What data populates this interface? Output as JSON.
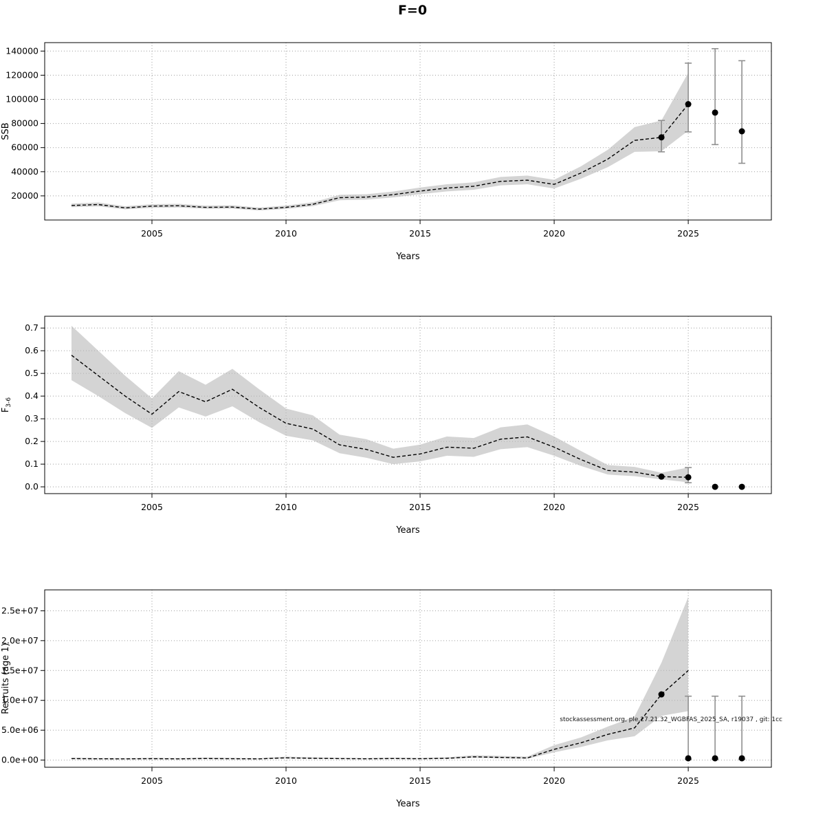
{
  "title": "F=0",
  "watermark": "stockassessment.org, ple.27.21.32_WGBFAS_2025_SA, r19037 , git: 1cc",
  "chart_data": [
    {
      "name": "SSB",
      "type": "line",
      "xlabel": "Years",
      "ylabel": "SSB",
      "ylabel_sub": null,
      "xlim": [
        2001,
        2028.1
      ],
      "ylim": [
        0,
        147000
      ],
      "xticks": [
        2005,
        2010,
        2015,
        2020,
        2025
      ],
      "ytick_values": [
        20000,
        40000,
        60000,
        80000,
        100000,
        120000,
        140000
      ],
      "ytick_labels": [
        "20000",
        "40000",
        "60000",
        "80000",
        "100000",
        "120000",
        "140000"
      ],
      "x": [
        2002,
        2003,
        2004,
        2005,
        2006,
        2007,
        2008,
        2009,
        2010,
        2011,
        2012,
        2013,
        2014,
        2015,
        2016,
        2017,
        2018,
        2019,
        2020,
        2021,
        2022,
        2023,
        2024,
        2025
      ],
      "values": [
        12000,
        12800,
        10000,
        11500,
        11800,
        10500,
        10700,
        9000,
        10500,
        13000,
        18500,
        19000,
        21000,
        24000,
        26500,
        28000,
        32000,
        33000,
        29500,
        39000,
        50500,
        66000,
        68500,
        96000
      ],
      "lower": [
        10600,
        11300,
        8800,
        10100,
        10400,
        9300,
        9400,
        7900,
        9200,
        11500,
        16400,
        16900,
        18700,
        21400,
        23700,
        25100,
        28700,
        29600,
        26100,
        34200,
        43800,
        56500,
        57000,
        74000
      ],
      "upper": [
        13600,
        14500,
        11400,
        13100,
        13400,
        11900,
        12200,
        10300,
        12000,
        14700,
        20900,
        21400,
        23600,
        26900,
        29600,
        31200,
        35700,
        36800,
        33300,
        44500,
        58200,
        77000,
        82500,
        122000
      ],
      "forecast_points": [
        {
          "x": 2024,
          "y": 68500,
          "lo": 56500,
          "hi": 82500
        },
        {
          "x": 2025,
          "y": 96000,
          "lo": 73000,
          "hi": 130000
        },
        {
          "x": 2026,
          "y": 89000,
          "lo": 62500,
          "hi": 142000
        },
        {
          "x": 2027,
          "y": 73500,
          "lo": 47000,
          "hi": 132000
        }
      ],
      "annotation": null
    },
    {
      "name": "Fishing mortality",
      "type": "line",
      "xlabel": "Years",
      "ylabel": "F",
      "ylabel_sub": "3-6",
      "xlim": [
        2001,
        2028.1
      ],
      "ylim": [
        -0.03,
        0.752
      ],
      "xticks": [
        2005,
        2010,
        2015,
        2020,
        2025
      ],
      "ytick_values": [
        0.0,
        0.1,
        0.2,
        0.3,
        0.4,
        0.5,
        0.6,
        0.7
      ],
      "ytick_labels": [
        "0.0",
        "0.1",
        "0.2",
        "0.3",
        "0.4",
        "0.5",
        "0.6",
        "0.7"
      ],
      "x": [
        2002,
        2003,
        2004,
        2005,
        2006,
        2007,
        2008,
        2009,
        2010,
        2011,
        2012,
        2013,
        2014,
        2015,
        2016,
        2017,
        2018,
        2019,
        2020,
        2021,
        2022,
        2023,
        2024,
        2025
      ],
      "values": [
        0.58,
        0.49,
        0.4,
        0.32,
        0.42,
        0.375,
        0.43,
        0.35,
        0.28,
        0.255,
        0.185,
        0.165,
        0.13,
        0.145,
        0.175,
        0.17,
        0.21,
        0.22,
        0.175,
        0.12,
        0.072,
        0.065,
        0.045,
        0.042
      ],
      "lower": [
        0.47,
        0.4,
        0.325,
        0.26,
        0.35,
        0.31,
        0.355,
        0.285,
        0.225,
        0.205,
        0.148,
        0.128,
        0.1,
        0.112,
        0.137,
        0.132,
        0.166,
        0.175,
        0.137,
        0.092,
        0.054,
        0.047,
        0.033,
        0.02
      ],
      "upper": [
        0.71,
        0.6,
        0.49,
        0.39,
        0.51,
        0.45,
        0.52,
        0.43,
        0.345,
        0.315,
        0.23,
        0.21,
        0.168,
        0.186,
        0.222,
        0.215,
        0.262,
        0.275,
        0.222,
        0.158,
        0.096,
        0.088,
        0.062,
        0.085
      ],
      "forecast_points": [
        {
          "x": 2024,
          "y": 0.045,
          "lo": null,
          "hi": null
        },
        {
          "x": 2025,
          "y": 0.042,
          "lo": 0.018,
          "hi": 0.085
        },
        {
          "x": 2026,
          "y": 0.0,
          "lo": null,
          "hi": null
        },
        {
          "x": 2027,
          "y": 0.0,
          "lo": null,
          "hi": null
        }
      ],
      "annotation": null
    },
    {
      "name": "Recruits (age 1)",
      "type": "line",
      "xlabel": "Years",
      "ylabel": "Recruits (age 1)",
      "ylabel_sub": null,
      "xlim": [
        2001,
        2028.1
      ],
      "ylim": [
        -1200000,
        28500000
      ],
      "xticks": [
        2005,
        2010,
        2015,
        2020,
        2025
      ],
      "ytick_values": [
        0,
        5000000,
        10000000,
        15000000,
        20000000,
        25000000
      ],
      "ytick_labels": [
        "0.0e+00",
        "5.0e+06",
        "1.0e+07",
        "1.5e+07",
        "2.0e+07",
        "2.5e+07"
      ],
      "x": [
        2002,
        2003,
        2004,
        2005,
        2006,
        2007,
        2008,
        2009,
        2010,
        2011,
        2012,
        2013,
        2014,
        2015,
        2016,
        2017,
        2018,
        2019,
        2020,
        2021,
        2022,
        2023,
        2024,
        2025
      ],
      "values": [
        250000,
        220000,
        200000,
        240000,
        210000,
        260000,
        230000,
        200000,
        380000,
        300000,
        250000,
        220000,
        260000,
        230000,
        300000,
        550000,
        450000,
        350000,
        1800000,
        2900000,
        4300000,
        5400000,
        11000000,
        15000000
      ],
      "lower": [
        150000,
        130000,
        120000,
        140000,
        130000,
        160000,
        140000,
        120000,
        250000,
        190000,
        160000,
        140000,
        160000,
        140000,
        190000,
        370000,
        290000,
        210000,
        1300000,
        2200000,
        3300000,
        4000000,
        7400000,
        8200000
      ],
      "upper": [
        400000,
        360000,
        330000,
        390000,
        340000,
        420000,
        370000,
        330000,
        580000,
        470000,
        390000,
        350000,
        410000,
        370000,
        470000,
        820000,
        700000,
        580000,
        2500000,
        3800000,
        5600000,
        7300000,
        16300000,
        27300000
      ],
      "forecast_points": [
        {
          "x": 2024,
          "y": 11000000,
          "lo": null,
          "hi": null
        },
        {
          "x": 2025,
          "y": 300000,
          "lo": 120000,
          "hi": 10700000
        },
        {
          "x": 2026,
          "y": 300000,
          "lo": 120000,
          "hi": 10700000
        },
        {
          "x": 2027,
          "y": 300000,
          "lo": 120000,
          "hi": 10700000
        }
      ],
      "annotation": "stockassessment.org, ple.27.21.32_WGBFAS_2025_SA, r19037 , git: 1cc"
    }
  ]
}
